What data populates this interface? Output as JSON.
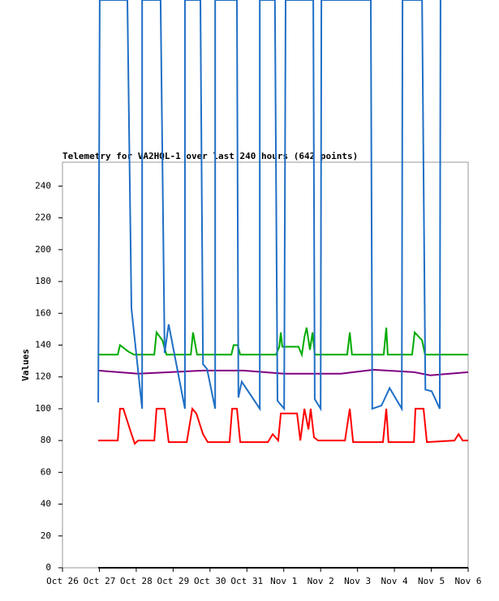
{
  "chart_data": {
    "type": "line",
    "title": "Telemetry for VA2HQL-1 over last 240 hours (642 points)",
    "ylabel": "Values",
    "xlim": [
      0,
      11
    ],
    "xticks": [
      {
        "value": 0,
        "label": "Oct 26"
      },
      {
        "value": 1,
        "label": "Oct 27"
      },
      {
        "value": 2,
        "label": "Oct 28"
      },
      {
        "value": 3,
        "label": "Oct 29"
      },
      {
        "value": 4,
        "label": "Oct 30"
      },
      {
        "value": 5,
        "label": "Oct 31"
      },
      {
        "value": 6,
        "label": "Nov 1"
      },
      {
        "value": 7,
        "label": "Nov 2"
      },
      {
        "value": 8,
        "label": "Nov 3"
      },
      {
        "value": 9,
        "label": "Nov 4"
      },
      {
        "value": 10,
        "label": "Nov 5"
      },
      {
        "value": 11,
        "label": "Nov 6"
      }
    ],
    "ylim": [
      0,
      255
    ],
    "yticks": [
      0,
      20,
      40,
      60,
      80,
      100,
      120,
      140,
      160,
      180,
      200,
      220,
      240
    ],
    "series": [
      {
        "color": "#000000",
        "x": [
          0.97,
          11
        ],
        "values": [
          0,
          0
        ]
      },
      {
        "color": "#800080",
        "x": [
          0.97,
          2.05,
          3.81,
          4.91,
          6.01,
          7.55,
          8.43,
          9.53,
          9.97,
          11
        ],
        "values": [
          124,
          122,
          124,
          124,
          122,
          122,
          124.5,
          123,
          121,
          123
        ]
      },
      {
        "color": "#ff0000",
        "x": [
          0.97,
          1.5,
          1.56,
          1.65,
          1.83,
          1.96,
          2.05,
          2.49,
          2.55,
          2.77,
          2.88,
          3.37,
          3.52,
          3.63,
          3.81,
          3.94,
          4.53,
          4.6,
          4.73,
          4.82,
          5.57,
          5.7,
          5.85,
          5.92,
          6.36,
          6.45,
          6.56,
          6.67,
          6.73,
          6.82,
          6.93,
          7.66,
          7.79,
          7.88,
          8.69,
          8.78,
          8.84,
          9.53,
          9.57,
          9.79,
          9.88,
          10.63,
          10.74,
          10.85,
          11
        ],
        "values": [
          80,
          80,
          100,
          100,
          87,
          78,
          80,
          80,
          100,
          100,
          79,
          79,
          100,
          97,
          84,
          79,
          79,
          100,
          100,
          79,
          79,
          84,
          80,
          97,
          97,
          80,
          100,
          87,
          100,
          82,
          80,
          80,
          100,
          79,
          79,
          100,
          79,
          79,
          100,
          100,
          79,
          80,
          84,
          80,
          80
        ]
      },
      {
        "color": "#00aa00",
        "x": [
          0.97,
          1.5,
          1.56,
          1.78,
          1.94,
          2.49,
          2.55,
          2.71,
          2.82,
          3.48,
          3.54,
          3.65,
          4.58,
          4.64,
          4.75,
          4.82,
          5.79,
          5.88,
          5.92,
          5.96,
          6.4,
          6.49,
          6.56,
          6.62,
          6.71,
          6.78,
          6.84,
          7.72,
          7.79,
          7.85,
          8.71,
          8.78,
          8.82,
          9.48,
          9.55,
          9.75,
          9.83,
          11
        ],
        "values": [
          134,
          134,
          140,
          136,
          134,
          134,
          148,
          143,
          134,
          134,
          148,
          134,
          134,
          140,
          140,
          134,
          134,
          139,
          148,
          139,
          139,
          134,
          145,
          151,
          137,
          148,
          134,
          134,
          148,
          134,
          134,
          151,
          134,
          134,
          148,
          143,
          134,
          134
        ]
      },
      {
        "color": "#1f6fc5",
        "x": [
          0.97,
          1.01,
          1.76,
          1.87,
          2.16,
          2.16,
          2.66,
          2.77,
          2.88,
          3.32,
          3.32,
          3.74,
          3.81,
          3.92,
          4.14,
          4.14,
          4.73,
          4.77,
          4.86,
          5.35,
          5.35,
          5.76,
          5.83,
          6.01,
          6.05,
          6.8,
          6.84,
          7.0,
          7.02,
          8.36,
          8.4,
          8.65,
          8.87,
          9.2,
          9.22,
          9.75,
          9.84,
          10.01,
          10.23,
          10.25
        ],
        "values": [
          104,
          357,
          357,
          163,
          100,
          357,
          357,
          135,
          153,
          100,
          357,
          357,
          128,
          125,
          100,
          357,
          357,
          107,
          117,
          100,
          357,
          357,
          105,
          100,
          357,
          357,
          106,
          100,
          357,
          357,
          100,
          102,
          113,
          100,
          357,
          357,
          112,
          111,
          100,
          357
        ]
      }
    ]
  }
}
